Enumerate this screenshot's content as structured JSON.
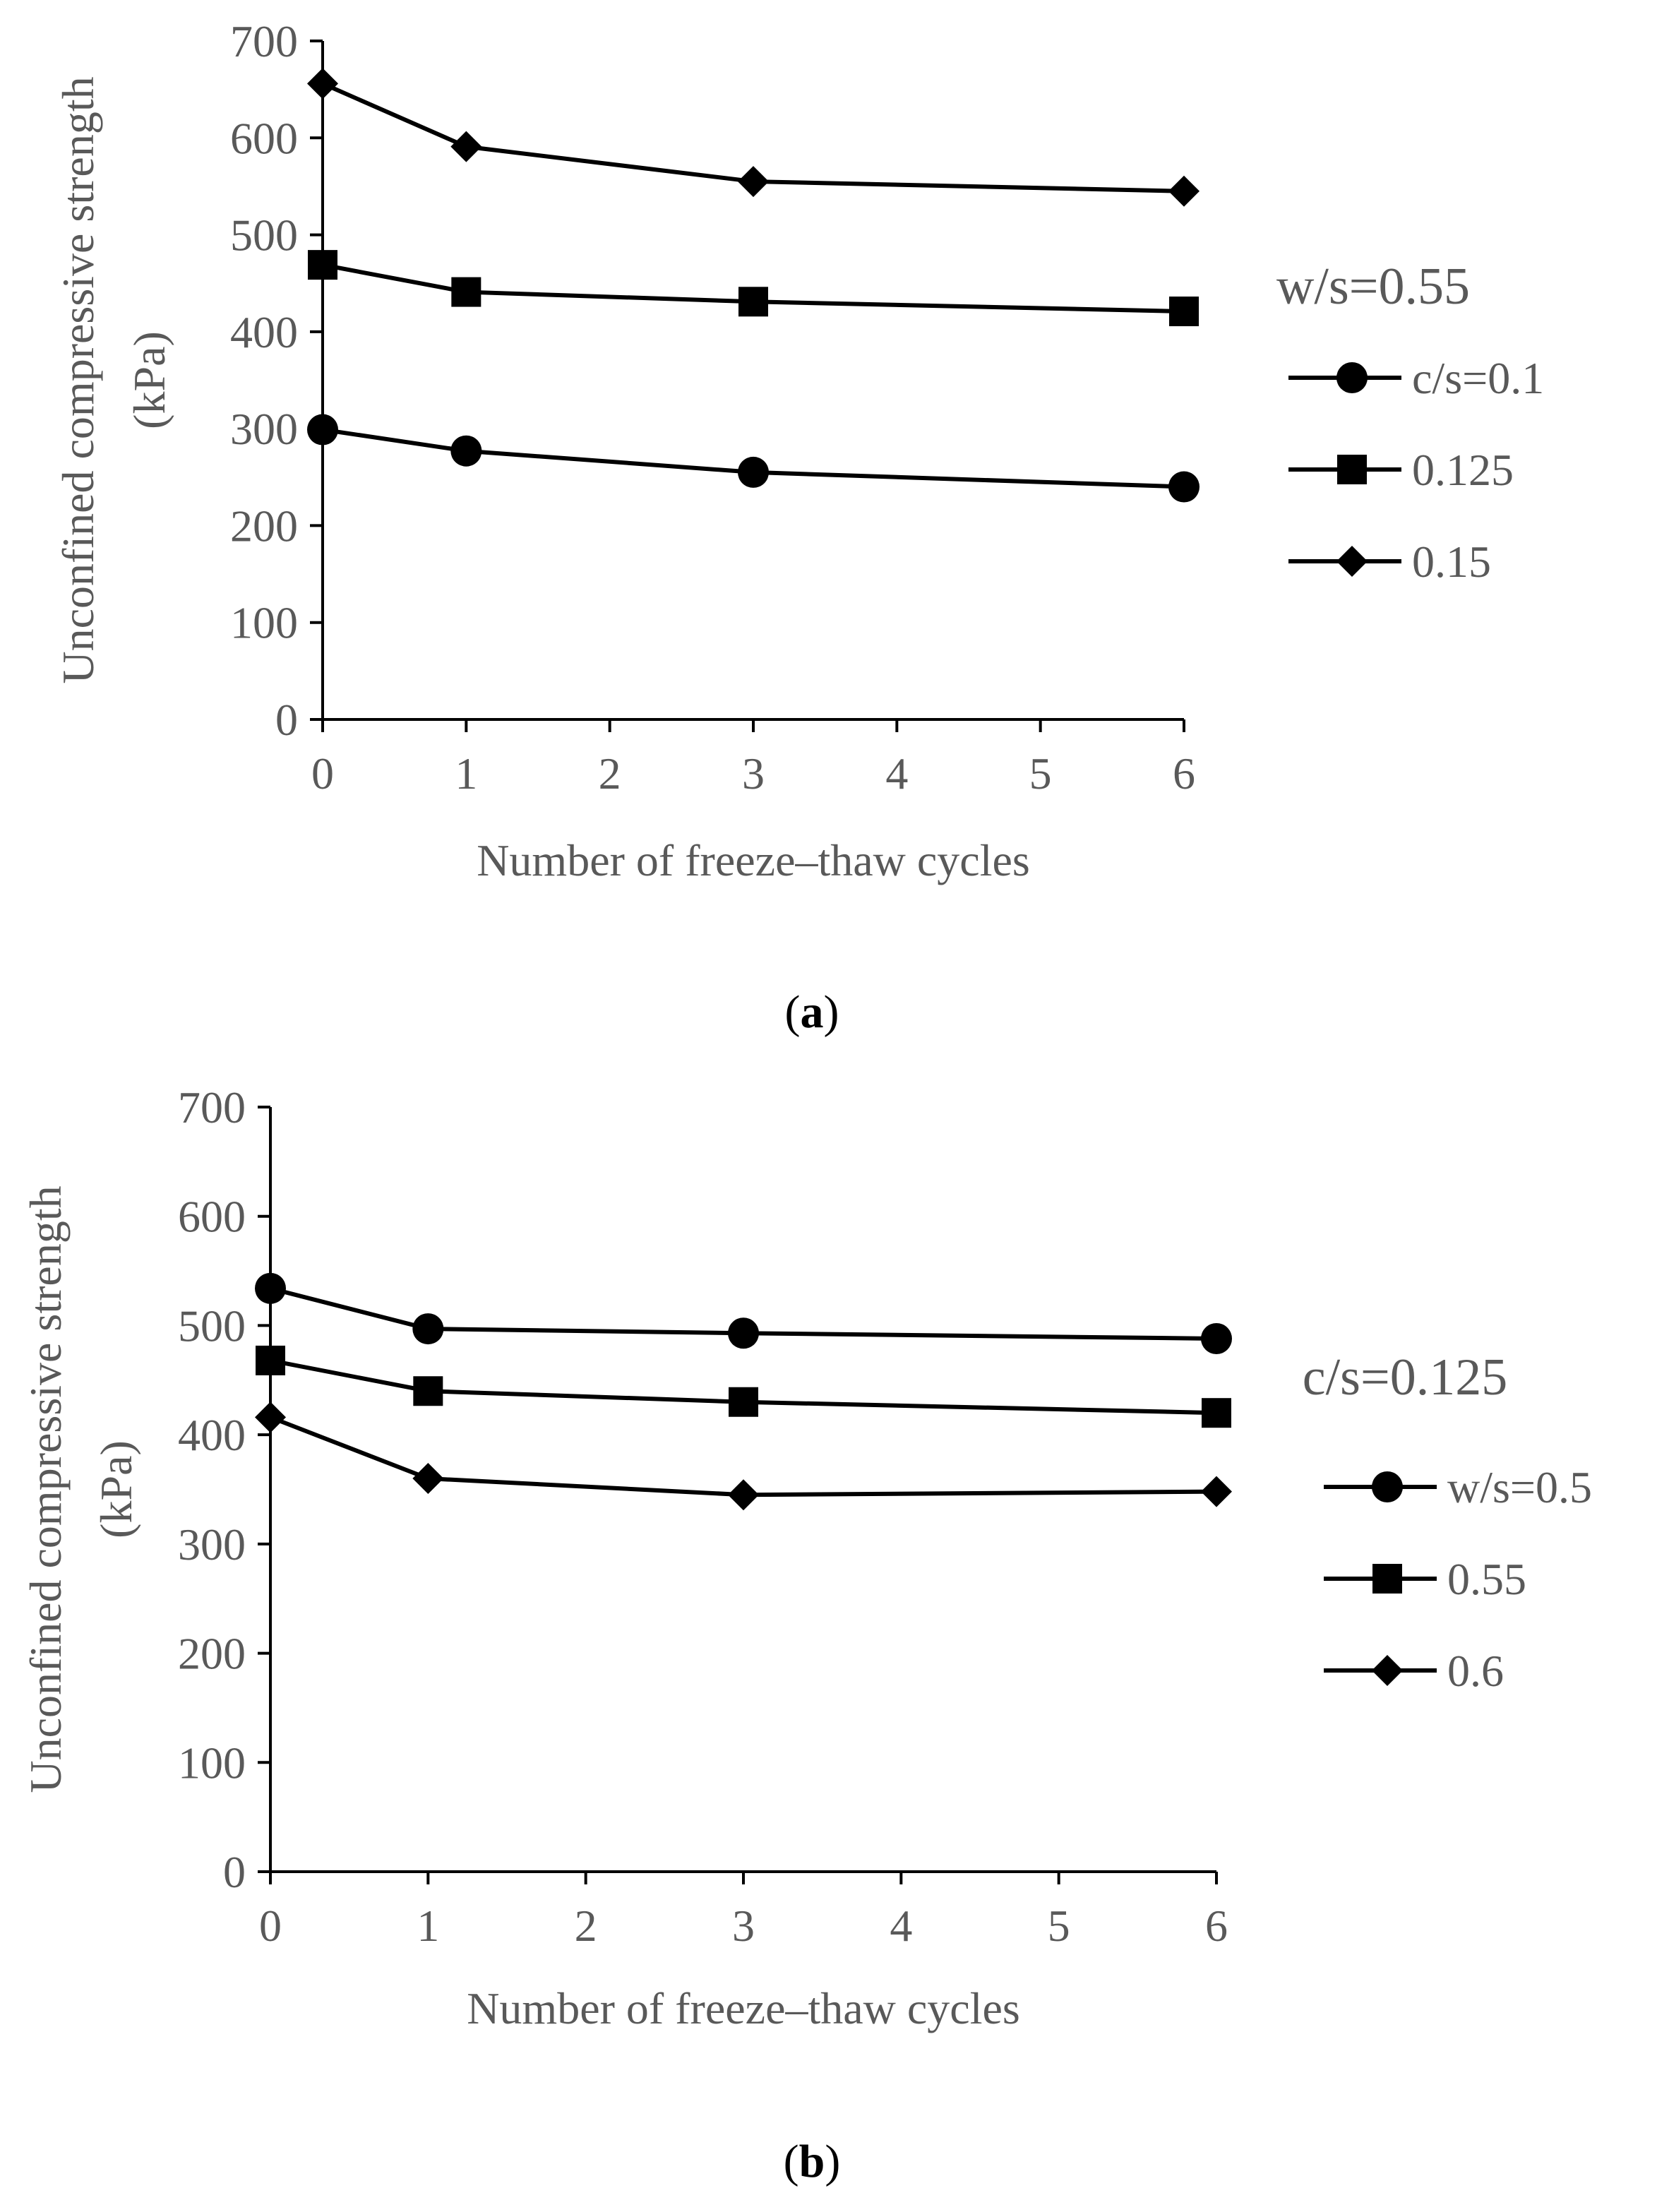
{
  "chart_data": [
    {
      "type": "line",
      "panel": "a",
      "caption_letter": "a",
      "title": "",
      "xlabel": "Number of freeze–thaw cycles",
      "ylabel_line1": "Unconfined compressive strength",
      "ylabel_line2": "(kPa)",
      "xlim": [
        0,
        6
      ],
      "ylim": [
        0,
        700
      ],
      "xticks": [
        "0",
        "1",
        "2",
        "3",
        "4",
        "5",
        "6"
      ],
      "yticks": [
        "0",
        "100",
        "200",
        "300",
        "400",
        "500",
        "600",
        "700"
      ],
      "x": [
        0,
        1,
        3,
        6
      ],
      "legend_title": "w/s=0.55",
      "legend_position": "right",
      "series": [
        {
          "name": "c/s=0.1",
          "marker": "circle",
          "values": [
            299,
            277,
            255,
            240
          ]
        },
        {
          "name": "0.125",
          "marker": "square",
          "values": [
            469,
            441,
            431,
            421
          ]
        },
        {
          "name": "0.15",
          "marker": "diamond",
          "values": [
            656,
            591,
            555,
            545
          ]
        }
      ]
    },
    {
      "type": "line",
      "panel": "b",
      "caption_letter": "b",
      "title": "",
      "xlabel": "Number of freeze–thaw cycles",
      "ylabel_line1": "Unconfined compressive strength",
      "ylabel_line2": "(kPa)",
      "xlim": [
        0,
        6
      ],
      "ylim": [
        0,
        700
      ],
      "xticks": [
        "0",
        "1",
        "2",
        "3",
        "4",
        "5",
        "6"
      ],
      "yticks": [
        "0",
        "100",
        "200",
        "300",
        "400",
        "500",
        "600",
        "700"
      ],
      "x": [
        0,
        1,
        3,
        6
      ],
      "legend_title": "c/s=0.125",
      "legend_position": "right",
      "series": [
        {
          "name": "w/s=0.5",
          "marker": "circle",
          "values": [
            534,
            497,
            493,
            488
          ]
        },
        {
          "name": "0.55",
          "marker": "square",
          "values": [
            468,
            440,
            430,
            420
          ]
        },
        {
          "name": "0.6",
          "marker": "diamond",
          "values": [
            416,
            360,
            345,
            348
          ]
        }
      ]
    }
  ]
}
